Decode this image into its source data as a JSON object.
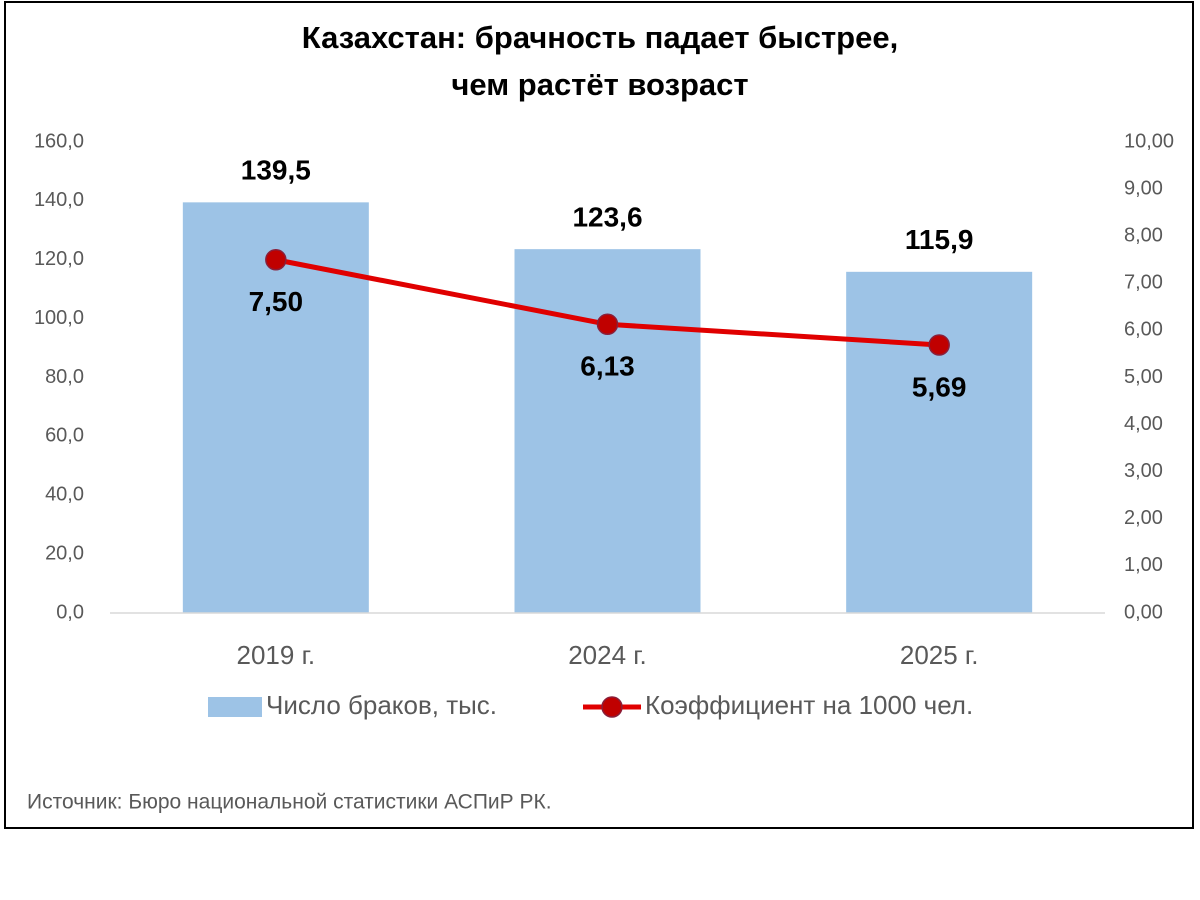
{
  "chart_data": {
    "type": "bar",
    "title": [
      "Казахстан: брачность падает быстрее,",
      "чем растёт возраст"
    ],
    "categories": [
      "2019 г.",
      "2024 г.",
      "2025 г."
    ],
    "series": [
      {
        "name": "Число браков, тыс.",
        "type": "bar",
        "color": "#9dc3e6",
        "values": [
          139.5,
          123.6,
          115.9
        ],
        "value_labels": [
          "139,5",
          "123,6",
          "115,9"
        ]
      },
      {
        "name": "Коэффициент на 1000 чел.",
        "type": "line",
        "axis": "y2",
        "color": "#e00000",
        "marker_color": "#c00000",
        "values": [
          7.5,
          6.13,
          5.69
        ],
        "value_labels": [
          "7,50",
          "6,13",
          "5,69"
        ]
      }
    ],
    "ylim": [
      0,
      160
    ],
    "yticks": [
      {
        "value": 0,
        "label": "0,0"
      },
      {
        "value": 20,
        "label": "20,0"
      },
      {
        "value": 40,
        "label": "40,0"
      },
      {
        "value": 60,
        "label": "60,0"
      },
      {
        "value": 80,
        "label": "80,0"
      },
      {
        "value": 100,
        "label": "100,0"
      },
      {
        "value": 120,
        "label": "120,0"
      },
      {
        "value": 140,
        "label": "140,0"
      },
      {
        "value": 160,
        "label": "160,0"
      }
    ],
    "y2lim": [
      0,
      10
    ],
    "y2ticks": [
      {
        "value": 0,
        "label": "0,00"
      },
      {
        "value": 1,
        "label": "1,00"
      },
      {
        "value": 2,
        "label": "2,00"
      },
      {
        "value": 3,
        "label": "3,00"
      },
      {
        "value": 4,
        "label": "4,00"
      },
      {
        "value": 5,
        "label": "5,00"
      },
      {
        "value": 6,
        "label": "6,00"
      },
      {
        "value": 7,
        "label": "7,00"
      },
      {
        "value": 8,
        "label": "8,00"
      },
      {
        "value": 9,
        "label": "9,00"
      },
      {
        "value": 10,
        "label": "10,00"
      }
    ],
    "grid": false,
    "legend": "bottom",
    "source": "Источник: Бюро национальной статистики АСПиР РК."
  }
}
